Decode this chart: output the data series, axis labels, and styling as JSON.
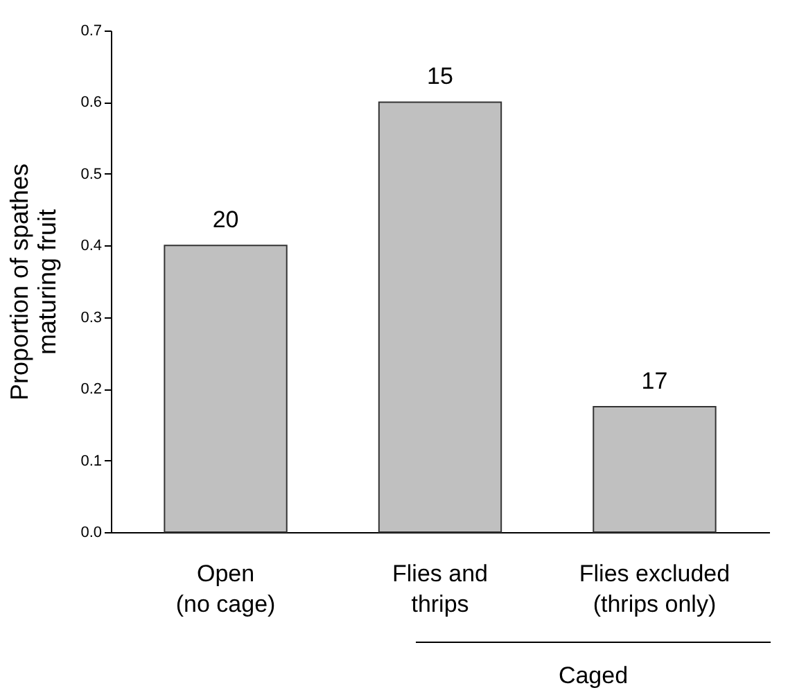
{
  "chart_data": {
    "type": "bar",
    "ylabel": "Proportion of spathes\nmaturing fruit",
    "categories": [
      "Open\n(no cage)",
      "Flies and\nthrips",
      "Flies excluded\n(thrips only)"
    ],
    "values": [
      0.4,
      0.6,
      0.175
    ],
    "color": "#c0c0c0",
    "ylim": [
      0,
      0.7
    ],
    "yticks": [
      {
        "value": 0,
        "label": "0.0"
      },
      0.1,
      0.2,
      0.3,
      0.4,
      0.5,
      0.6,
      0.7
    ],
    "grid": false,
    "annotations": [
      {
        "text": "20",
        "x": "Open\n(no cage)",
        "y": 0.4
      },
      {
        "text": "15",
        "x": "Flies and\nthrips",
        "y": 0.6
      },
      {
        "text": "17",
        "x": "Flies excluded\n(thrips only)",
        "y": 0.175
      },
      "Caged"
    ]
  }
}
